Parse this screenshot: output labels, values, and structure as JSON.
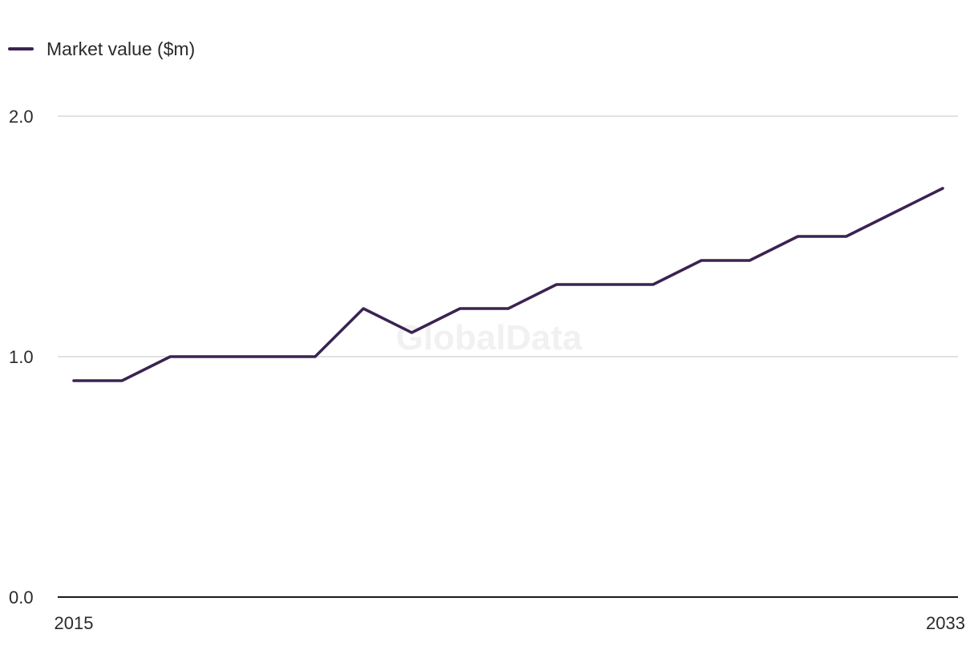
{
  "legend": {
    "label": "Market value ($m)"
  },
  "watermark": "GlobalData",
  "colors": {
    "series": "#3a2352",
    "grid": "#d9d9d9",
    "axis": "#1a1a1a"
  },
  "chart_data": {
    "type": "line",
    "title": "",
    "xlabel": "",
    "ylabel": "",
    "x": [
      2015,
      2016,
      2017,
      2018,
      2019,
      2020,
      2021,
      2022,
      2023,
      2024,
      2025,
      2026,
      2027,
      2028,
      2029,
      2030,
      2031,
      2032,
      2033
    ],
    "series": [
      {
        "name": "Market value ($m)",
        "values": [
          0.9,
          0.9,
          1.0,
          1.0,
          1.0,
          1.0,
          1.2,
          1.1,
          1.2,
          1.2,
          1.3,
          1.3,
          1.3,
          1.4,
          1.4,
          1.5,
          1.5,
          1.6,
          1.7
        ]
      }
    ],
    "ylim": [
      0,
      2.0
    ],
    "yticks": [
      0.0,
      1.0,
      2.0
    ],
    "ytick_labels": [
      "0.0",
      "1.0",
      "2.0"
    ],
    "xtick_labels": [
      "2015",
      "2033"
    ],
    "grid": true,
    "legend_position": "top-left"
  }
}
